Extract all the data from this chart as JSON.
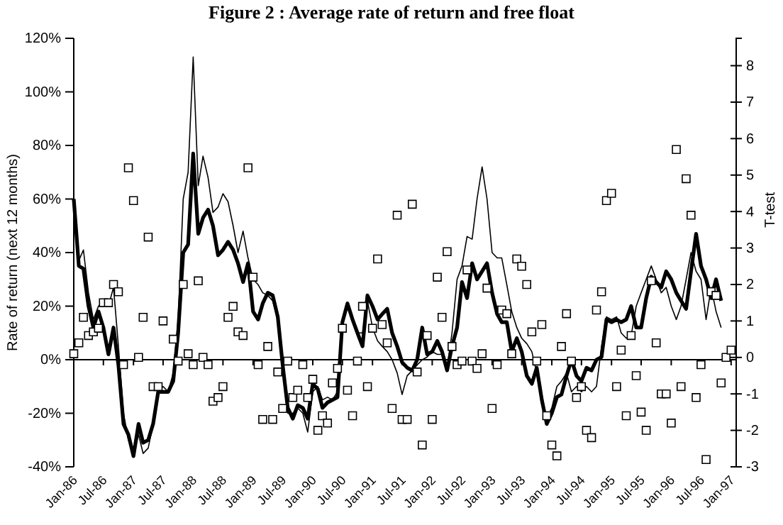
{
  "chart_data": {
    "type": "line",
    "title": "Figure 2 : Average rate of return and free float",
    "ylabel": "Rate of return (next 12 months)",
    "y2label": "T-test",
    "x": [
      "1986-01",
      "1986-02",
      "1986-03",
      "1986-04",
      "1986-05",
      "1986-06",
      "1986-07",
      "1986-08",
      "1986-09",
      "1986-10",
      "1986-11",
      "1986-12",
      "1987-01",
      "1987-02",
      "1987-03",
      "1987-04",
      "1987-05",
      "1987-06",
      "1987-07",
      "1987-08",
      "1987-09",
      "1987-10",
      "1987-11",
      "1987-12",
      "1988-01",
      "1988-02",
      "1988-03",
      "1988-04",
      "1988-05",
      "1988-06",
      "1988-07",
      "1988-08",
      "1988-09",
      "1988-10",
      "1988-11",
      "1988-12",
      "1989-01",
      "1989-02",
      "1989-03",
      "1989-04",
      "1989-05",
      "1989-06",
      "1989-07",
      "1989-08",
      "1989-09",
      "1989-10",
      "1989-11",
      "1989-12",
      "1990-01",
      "1990-02",
      "1990-03",
      "1990-04",
      "1990-05",
      "1990-06",
      "1990-07",
      "1990-08",
      "1990-09",
      "1990-10",
      "1990-11",
      "1990-12",
      "1991-01",
      "1991-02",
      "1991-03",
      "1991-04",
      "1991-05",
      "1991-06",
      "1991-07",
      "1991-08",
      "1991-09",
      "1991-10",
      "1991-11",
      "1991-12",
      "1992-01",
      "1992-02",
      "1992-03",
      "1992-04",
      "1992-05",
      "1992-06",
      "1992-07",
      "1992-08",
      "1992-09",
      "1992-10",
      "1992-11",
      "1992-12",
      "1993-01",
      "1993-02",
      "1993-03",
      "1993-04",
      "1993-05",
      "1993-06",
      "1993-07",
      "1993-08",
      "1993-09",
      "1993-10",
      "1993-11",
      "1993-12",
      "1994-01",
      "1994-02",
      "1994-03",
      "1994-04",
      "1994-05",
      "1994-06",
      "1994-07",
      "1994-08",
      "1994-09",
      "1994-10",
      "1994-11",
      "1994-12",
      "1995-01",
      "1995-02",
      "1995-03",
      "1995-04",
      "1995-05",
      "1995-06",
      "1995-07",
      "1995-08",
      "1995-09",
      "1995-10",
      "1995-11",
      "1995-12",
      "1996-01",
      "1996-02",
      "1996-03",
      "1996-04",
      "1996-05",
      "1996-06",
      "1996-07",
      "1996-08",
      "1996-09",
      "1996-10",
      "1996-11",
      "1996-12",
      "1997-01"
    ],
    "series": [
      {
        "color": "#000000",
        "values": [
          60,
          37,
          41,
          25,
          15,
          20,
          22,
          20,
          27,
          5,
          -20,
          -30,
          -35,
          -28,
          -35,
          -33,
          -24,
          -12,
          -10,
          -12,
          -5,
          15,
          60,
          70,
          113,
          65,
          76,
          68,
          55,
          57,
          62,
          59,
          50,
          40,
          48,
          38,
          30,
          28,
          25,
          24,
          22,
          15,
          -3,
          -20,
          -20,
          -18,
          -20,
          -27,
          -12,
          -10,
          -15,
          -14,
          -15,
          -12,
          15,
          20,
          15,
          10,
          10,
          22,
          12,
          7,
          5,
          3,
          0,
          -5,
          -13,
          -6,
          -4,
          -2,
          0,
          1,
          3,
          2,
          2,
          -3,
          10,
          30,
          35,
          46,
          45,
          60,
          72,
          60,
          40,
          38,
          38,
          28,
          18,
          12,
          8,
          6,
          3,
          -5,
          -15,
          -22,
          -18,
          -10,
          -8,
          -5,
          -12,
          -10,
          -12,
          -10,
          -12,
          -10,
          5,
          16,
          15,
          16,
          10,
          8,
          9,
          20,
          25,
          30,
          35,
          30,
          25,
          27,
          20,
          15,
          20,
          30,
          40,
          33,
          30,
          15,
          27,
          18,
          12,
          null,
          null
        ]
      },
      {
        "color": "#000000",
        "values": [
          60,
          35,
          34,
          20,
          12,
          18,
          12,
          2,
          12,
          -2,
          -24,
          -28,
          -36,
          -24,
          -31,
          -30,
          -24,
          -12,
          -12,
          -12,
          -8,
          10,
          40,
          43,
          77,
          47,
          53,
          56,
          50,
          39,
          41,
          44,
          41,
          36,
          29,
          36,
          18,
          15,
          21,
          25,
          24,
          16,
          -2,
          -18,
          -22,
          -17,
          -18,
          -22,
          -9,
          -11,
          -18,
          -16,
          -15,
          -14,
          14,
          21,
          15,
          10,
          5,
          24,
          20,
          15,
          17,
          19,
          10,
          5,
          -1,
          -3,
          -4,
          0,
          12,
          2,
          3,
          7,
          3,
          -4,
          5,
          12,
          29,
          23,
          36,
          30,
          33,
          36,
          25,
          17,
          14,
          14,
          3,
          8,
          3,
          -6,
          -9,
          -3,
          -15,
          -24,
          -20,
          -14,
          -13,
          -6,
          0,
          -6,
          -8,
          -3,
          -4,
          0,
          1,
          15,
          14,
          15,
          14,
          15,
          20,
          12,
          12,
          23,
          31,
          29,
          27,
          33,
          30,
          25,
          22,
          19,
          33,
          47,
          35,
          30,
          23,
          30,
          22,
          null,
          null
        ]
      },
      {
        "type": "scatter",
        "axis": "y2",
        "marker": "square",
        "color": "#000000",
        "values": [
          0.1,
          0.4,
          1.1,
          0.6,
          0.7,
          0.8,
          1.5,
          1.5,
          2.0,
          1.8,
          -0.2,
          5.2,
          4.3,
          0.0,
          1.1,
          3.3,
          -0.8,
          -0.8,
          1.0,
          null,
          0.5,
          -0.1,
          2.0,
          0.1,
          -0.2,
          2.1,
          0.0,
          -0.2,
          -1.2,
          -1.1,
          -0.8,
          1.1,
          1.4,
          0.7,
          0.6,
          5.2,
          2.2,
          -0.2,
          -1.7,
          0.3,
          -1.7,
          -0.4,
          -1.4,
          -0.1,
          -1.1,
          -0.9,
          -0.2,
          -1.1,
          -0.6,
          -2.0,
          -1.6,
          -1.8,
          -0.7,
          -0.3,
          0.8,
          -0.9,
          -1.6,
          -0.1,
          1.4,
          -0.8,
          0.8,
          2.7,
          0.9,
          0.4,
          -1.4,
          3.9,
          -1.7,
          -1.7,
          4.2,
          -0.4,
          -2.4,
          0.6,
          -1.7,
          2.2,
          1.1,
          2.9,
          0.3,
          -0.2,
          -0.1,
          2.4,
          -0.1,
          -0.3,
          0.1,
          1.9,
          -1.4,
          -0.2,
          1.3,
          1.2,
          0.1,
          2.7,
          2.5,
          2.0,
          0.7,
          -0.1,
          0.9,
          -1.6,
          -2.4,
          -2.7,
          0.3,
          1.2,
          -0.1,
          -1.1,
          -0.8,
          -2.0,
          -2.2,
          1.3,
          1.8,
          4.3,
          4.5,
          -0.8,
          0.2,
          -1.6,
          0.6,
          -0.5,
          -1.5,
          -2.0,
          2.1,
          0.4,
          -1.0,
          -1.0,
          -1.8,
          5.7,
          -0.8,
          4.9,
          3.9,
          -1.1,
          -0.2,
          -2.8,
          1.8,
          1.7,
          -0.7,
          0.0,
          0.2
        ]
      }
    ],
    "xlim": [
      "1986-01",
      "1997-02"
    ],
    "xticks": [
      {
        "value": "1986-01",
        "label": "Jan-86"
      },
      {
        "value": "1986-07",
        "label": "Jul-86"
      },
      {
        "value": "1987-01",
        "label": "Jan-87"
      },
      {
        "value": "1987-07",
        "label": "Jul-87"
      },
      {
        "value": "1988-01",
        "label": "Jan-88"
      },
      {
        "value": "1988-07",
        "label": "Jul-88"
      },
      {
        "value": "1989-01",
        "label": "Jan-89"
      },
      {
        "value": "1989-07",
        "label": "Jul-89"
      },
      {
        "value": "1990-01",
        "label": "Jan-90"
      },
      {
        "value": "1990-07",
        "label": "Jul-90"
      },
      {
        "value": "1991-01",
        "label": "Jan-91"
      },
      {
        "value": "1991-07",
        "label": "Jul-91"
      },
      {
        "value": "1992-01",
        "label": "Jan-92"
      },
      {
        "value": "1992-07",
        "label": "Jul-92"
      },
      {
        "value": "1993-01",
        "label": "Jan-93"
      },
      {
        "value": "1993-07",
        "label": "Jul-93"
      },
      {
        "value": "1994-01",
        "label": "Jan-94"
      },
      {
        "value": "1994-07",
        "label": "Jul-94"
      },
      {
        "value": "1995-01",
        "label": "Jan-95"
      },
      {
        "value": "1995-07",
        "label": "Jul-95"
      },
      {
        "value": "1996-01",
        "label": "Jan-96"
      },
      {
        "value": "1996-07",
        "label": "Jul-96"
      },
      {
        "value": "1997-01",
        "label": "Jan-97"
      }
    ],
    "ylim": [
      -40,
      120
    ],
    "yticks": [
      {
        "value": -40,
        "label": "-40%"
      },
      {
        "value": -20,
        "label": "-20%"
      },
      {
        "value": 0,
        "label": "0%"
      },
      {
        "value": 20,
        "label": "20%"
      },
      {
        "value": 40,
        "label": "40%"
      },
      {
        "value": 60,
        "label": "60%"
      },
      {
        "value": 80,
        "label": "80%"
      },
      {
        "value": 100,
        "label": "100%"
      },
      {
        "value": 120,
        "label": "120%"
      }
    ],
    "y2lim": [
      -3,
      8.75
    ],
    "y2ticks": [
      -3,
      -2,
      -1,
      0,
      1,
      2,
      3,
      4,
      5,
      6,
      7,
      8
    ]
  }
}
